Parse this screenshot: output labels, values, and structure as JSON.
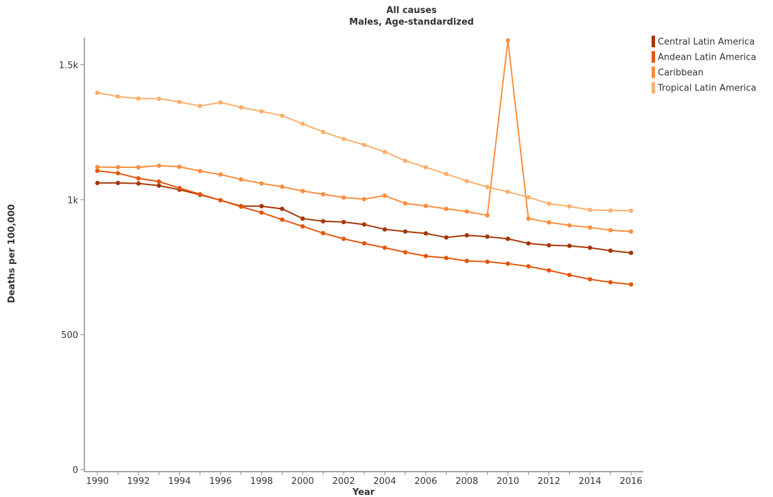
{
  "chart_data": {
    "type": "line",
    "title": "All causes",
    "subtitle": "Males, Age-standardized",
    "xlabel": "Year",
    "ylabel": "Deaths per 100,000",
    "xlim": [
      1990,
      2016
    ],
    "ylim": [
      0,
      1600
    ],
    "x_ticks": [
      "1990",
      "1992",
      "1994",
      "1996",
      "1998",
      "2000",
      "2002",
      "2004",
      "2006",
      "2008",
      "2010",
      "2012",
      "2014",
      "2016"
    ],
    "y_ticks": [
      {
        "value": 0,
        "label": "0"
      },
      {
        "value": 500,
        "label": "500"
      },
      {
        "value": 1000,
        "label": "1k"
      },
      {
        "value": 1500,
        "label": "1.5k"
      }
    ],
    "legend_position": "top-right",
    "grid": false,
    "x": [
      1990,
      1991,
      1992,
      1993,
      1994,
      1995,
      1996,
      1997,
      1998,
      1999,
      2000,
      2001,
      2002,
      2003,
      2004,
      2005,
      2006,
      2007,
      2008,
      2009,
      2010,
      2011,
      2012,
      2013,
      2014,
      2015,
      2016
    ],
    "series": [
      {
        "name": "Central Latin America",
        "color": "#a63603",
        "values": [
          1062,
          1062,
          1060,
          1052,
          1037,
          1018,
          998,
          976,
          976,
          966,
          930,
          920,
          917,
          908,
          890,
          882,
          875,
          860,
          868,
          863,
          855,
          838,
          831,
          829,
          822,
          811,
          803
        ]
      },
      {
        "name": "Andean Latin America",
        "color": "#e6550d",
        "values": [
          1107,
          1098,
          1079,
          1067,
          1043,
          1020,
          998,
          974,
          952,
          926,
          901,
          876,
          855,
          838,
          822,
          805,
          791,
          784,
          773,
          770,
          763,
          753,
          738,
          721,
          705,
          694,
          686
        ]
      },
      {
        "name": "Caribbean",
        "color": "#fd8d3c",
        "values": [
          1121,
          1120,
          1120,
          1126,
          1122,
          1106,
          1093,
          1075,
          1060,
          1048,
          1032,
          1020,
          1008,
          1002,
          1015,
          986,
          977,
          966,
          956,
          942,
          1590,
          930,
          916,
          905,
          897,
          887,
          882
        ]
      },
      {
        "name": "Tropical Latin America",
        "color": "#fdae6b",
        "values": [
          1396,
          1382,
          1375,
          1374,
          1362,
          1347,
          1360,
          1342,
          1327,
          1311,
          1281,
          1251,
          1225,
          1203,
          1177,
          1144,
          1120,
          1095,
          1069,
          1047,
          1029,
          1009,
          985,
          975,
          962,
          960,
          959
        ]
      }
    ]
  }
}
